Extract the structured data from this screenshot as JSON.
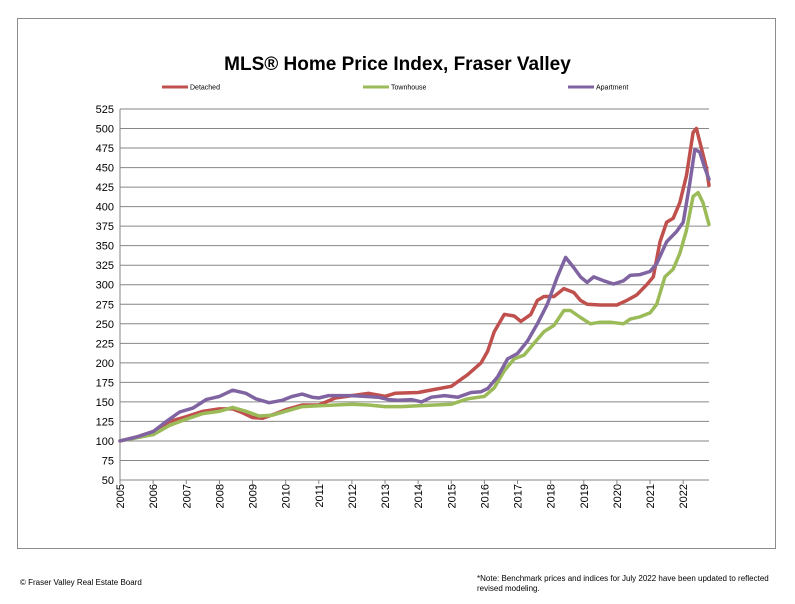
{
  "title": "MLS® Home Price Index, Fraser Valley",
  "footer": {
    "copyright": "© Fraser Valley Real Estate Board",
    "note_line1": "*Note: Benchmark prices and indices for July 2022 have been updated to reflected",
    "note_line2": "revised modeling."
  },
  "colors": {
    "Detached": "#c0504d",
    "Townhouse": "#9bbb59",
    "Apartment": "#8064a2",
    "grid": "#868686"
  },
  "chart_data": {
    "type": "line",
    "title": "MLS® Home Price Index, Fraser Valley",
    "xlabel": "",
    "ylabel": "",
    "ylim": [
      50,
      525
    ],
    "yticks": [
      50,
      75,
      100,
      125,
      150,
      175,
      200,
      225,
      250,
      275,
      300,
      325,
      350,
      375,
      400,
      425,
      450,
      475,
      500,
      525
    ],
    "xlim": [
      2005,
      2022.75
    ],
    "xticks": [
      "2005",
      "2006",
      "2007",
      "2008",
      "2009",
      "2010",
      "2011",
      "2012",
      "2013",
      "2014",
      "2015",
      "2016",
      "2017",
      "2018",
      "2019",
      "2020",
      "2021",
      "2022"
    ],
    "grid": "horizontal",
    "legend": "top",
    "series": [
      {
        "name": "Detached",
        "points": [
          [
            2005,
            100
          ],
          [
            2005.5,
            105
          ],
          [
            2006,
            112
          ],
          [
            2006.5,
            125
          ],
          [
            2007,
            131
          ],
          [
            2007.5,
            138
          ],
          [
            2008,
            141
          ],
          [
            2008.4,
            141
          ],
          [
            2008.7,
            136
          ],
          [
            2009,
            130
          ],
          [
            2009.3,
            129
          ],
          [
            2009.7,
            135
          ],
          [
            2010,
            140
          ],
          [
            2010.5,
            146
          ],
          [
            2011,
            146
          ],
          [
            2011.5,
            155
          ],
          [
            2012,
            158
          ],
          [
            2012.5,
            161
          ],
          [
            2013,
            157
          ],
          [
            2013.3,
            161
          ],
          [
            2014,
            162
          ],
          [
            2014.5,
            166
          ],
          [
            2015,
            170
          ],
          [
            2015.5,
            185
          ],
          [
            2015.9,
            200
          ],
          [
            2016.1,
            215
          ],
          [
            2016.3,
            240
          ],
          [
            2016.6,
            262
          ],
          [
            2016.9,
            260
          ],
          [
            2017.1,
            253
          ],
          [
            2017.4,
            262
          ],
          [
            2017.6,
            280
          ],
          [
            2017.8,
            285
          ],
          [
            2018.1,
            285
          ],
          [
            2018.4,
            295
          ],
          [
            2018.7,
            290
          ],
          [
            2018.9,
            280
          ],
          [
            2019.1,
            275
          ],
          [
            2019.5,
            274
          ],
          [
            2020,
            274
          ],
          [
            2020.3,
            280
          ],
          [
            2020.6,
            287
          ],
          [
            2020.9,
            300
          ],
          [
            2021.1,
            310
          ],
          [
            2021.3,
            355
          ],
          [
            2021.5,
            380
          ],
          [
            2021.7,
            385
          ],
          [
            2021.9,
            405
          ],
          [
            2022.1,
            440
          ],
          [
            2022.3,
            495
          ],
          [
            2022.4,
            500
          ],
          [
            2022.55,
            475
          ],
          [
            2022.7,
            450
          ],
          [
            2022.78,
            427
          ]
        ]
      },
      {
        "name": "Townhouse",
        "points": [
          [
            2005,
            100
          ],
          [
            2006,
            108
          ],
          [
            2006.5,
            120
          ],
          [
            2007,
            128
          ],
          [
            2007.5,
            135
          ],
          [
            2008,
            138
          ],
          [
            2008.4,
            143
          ],
          [
            2008.8,
            138
          ],
          [
            2009.2,
            132
          ],
          [
            2009.6,
            133
          ],
          [
            2010,
            138
          ],
          [
            2010.5,
            144
          ],
          [
            2011,
            145
          ],
          [
            2011.5,
            146
          ],
          [
            2012,
            147
          ],
          [
            2012.5,
            146
          ],
          [
            2013,
            144
          ],
          [
            2013.5,
            144
          ],
          [
            2014,
            145
          ],
          [
            2014.5,
            146
          ],
          [
            2015,
            147
          ],
          [
            2015.5,
            154
          ],
          [
            2016,
            157
          ],
          [
            2016.3,
            168
          ],
          [
            2016.6,
            190
          ],
          [
            2016.9,
            205
          ],
          [
            2017.2,
            210
          ],
          [
            2017.5,
            225
          ],
          [
            2017.8,
            240
          ],
          [
            2018.1,
            248
          ],
          [
            2018.4,
            267
          ],
          [
            2018.6,
            267
          ],
          [
            2018.9,
            258
          ],
          [
            2019.2,
            250
          ],
          [
            2019.5,
            252
          ],
          [
            2019.8,
            252
          ],
          [
            2020.2,
            250
          ],
          [
            2020.4,
            256
          ],
          [
            2020.7,
            259
          ],
          [
            2021,
            264
          ],
          [
            2021.2,
            275
          ],
          [
            2021.45,
            310
          ],
          [
            2021.7,
            320
          ],
          [
            2021.9,
            340
          ],
          [
            2022.1,
            370
          ],
          [
            2022.3,
            413
          ],
          [
            2022.45,
            418
          ],
          [
            2022.6,
            405
          ],
          [
            2022.78,
            377
          ]
        ]
      },
      {
        "name": "Apartment",
        "points": [
          [
            2005,
            100
          ],
          [
            2005.5,
            105
          ],
          [
            2006,
            112
          ],
          [
            2006.4,
            125
          ],
          [
            2006.8,
            137
          ],
          [
            2007.2,
            142
          ],
          [
            2007.6,
            153
          ],
          [
            2008,
            157
          ],
          [
            2008.4,
            165
          ],
          [
            2008.8,
            161
          ],
          [
            2009.1,
            154
          ],
          [
            2009.5,
            149
          ],
          [
            2009.9,
            152
          ],
          [
            2010.2,
            157
          ],
          [
            2010.5,
            160
          ],
          [
            2010.8,
            156
          ],
          [
            2011,
            155
          ],
          [
            2011.3,
            158
          ],
          [
            2011.6,
            158
          ],
          [
            2012,
            158
          ],
          [
            2012.4,
            157
          ],
          [
            2012.8,
            156
          ],
          [
            2013.1,
            153
          ],
          [
            2013.4,
            152
          ],
          [
            2013.8,
            153
          ],
          [
            2014.1,
            150
          ],
          [
            2014.4,
            156
          ],
          [
            2014.8,
            158
          ],
          [
            2015.2,
            156
          ],
          [
            2015.6,
            162
          ],
          [
            2015.9,
            163
          ],
          [
            2016.1,
            167
          ],
          [
            2016.4,
            182
          ],
          [
            2016.7,
            205
          ],
          [
            2017,
            212
          ],
          [
            2017.3,
            228
          ],
          [
            2017.6,
            250
          ],
          [
            2017.9,
            275
          ],
          [
            2018.2,
            310
          ],
          [
            2018.45,
            335
          ],
          [
            2018.7,
            322
          ],
          [
            2018.9,
            310
          ],
          [
            2019.1,
            303
          ],
          [
            2019.3,
            310
          ],
          [
            2019.6,
            305
          ],
          [
            2019.9,
            301
          ],
          [
            2020.2,
            305
          ],
          [
            2020.4,
            312
          ],
          [
            2020.7,
            313
          ],
          [
            2021,
            317
          ],
          [
            2021.2,
            327
          ],
          [
            2021.5,
            355
          ],
          [
            2021.8,
            368
          ],
          [
            2022,
            380
          ],
          [
            2022.2,
            430
          ],
          [
            2022.35,
            473
          ],
          [
            2022.5,
            470
          ],
          [
            2022.65,
            450
          ],
          [
            2022.78,
            435
          ]
        ]
      }
    ]
  }
}
